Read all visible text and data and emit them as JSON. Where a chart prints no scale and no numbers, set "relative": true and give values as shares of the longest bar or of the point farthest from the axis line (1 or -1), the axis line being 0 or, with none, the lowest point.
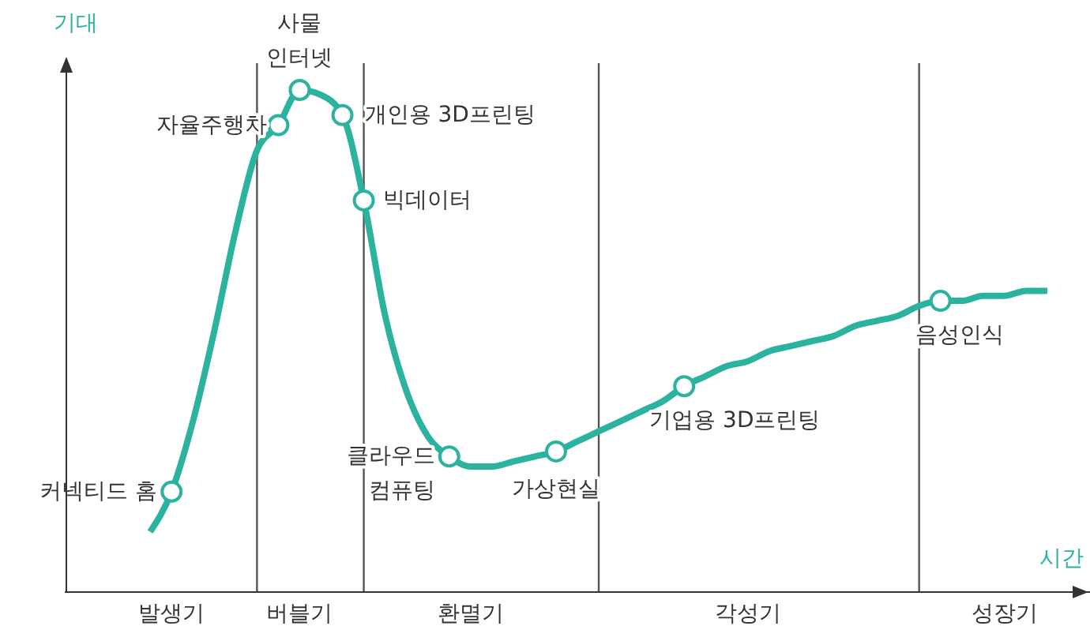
{
  "chart_data": {
    "type": "line",
    "relative": true,
    "xlabel": "시간",
    "ylabel": "기대",
    "categories": [
      null,
      null,
      null,
      null,
      null,
      "발생기",
      null,
      null,
      null,
      null,
      null,
      "버블기",
      null,
      null,
      null,
      null,
      null,
      null,
      null,
      "환멸기",
      null,
      null,
      null,
      null,
      null,
      null,
      null,
      null,
      null,
      null,
      null,
      null,
      "각성기",
      null,
      null,
      null,
      null,
      null,
      null,
      null,
      null,
      null,
      null,
      null,
      "성장기",
      null,
      null,
      null,
      null
    ],
    "series": [
      {
        "color": "#2bb3a0",
        "values": [
          null,
          null,
          null,
          null,
          0.12,
          0.2,
          0.34,
          0.52,
          0.72,
          0.88,
          0.93,
          1.0,
          0.99,
          0.95,
          0.78,
          0.55,
          0.4,
          0.31,
          0.27,
          0.25,
          0.25,
          0.26,
          0.27,
          0.28,
          0.3,
          0.32,
          0.34,
          0.36,
          0.38,
          0.41,
          0.43,
          0.45,
          0.46,
          0.48,
          0.49,
          0.5,
          0.51,
          0.53,
          0.54,
          0.55,
          0.57,
          0.58,
          0.58,
          0.59,
          0.59,
          0.6,
          0.6,
          null,
          null
        ]
      },
      {
        "type": "scatter",
        "color": "#2bb3a0",
        "marker": "circle",
        "values": [
          null,
          null,
          null,
          null,
          null,
          0.2,
          null,
          null,
          null,
          null,
          0.93,
          1.0,
          null,
          0.95,
          0.78,
          null,
          null,
          null,
          0.27,
          null,
          null,
          null,
          null,
          0.28,
          null,
          null,
          null,
          null,
          null,
          0.41,
          null,
          null,
          null,
          null,
          null,
          null,
          null,
          null,
          null,
          null,
          null,
          0.58,
          null,
          null,
          null,
          null,
          null,
          null,
          null
        ]
      }
    ],
    "annotations": [
      "커넥티드 홈",
      "자율주행차",
      "사물\n인터넷",
      "개인용 3D프린팅",
      "빅데이터",
      "클라우드\n컴퓨팅",
      "가상현실",
      "기업용 3D프린팅",
      "음성인식"
    ],
    "marker": "none",
    "line_style": "solid",
    "grid": "x",
    "legend": false
  }
}
